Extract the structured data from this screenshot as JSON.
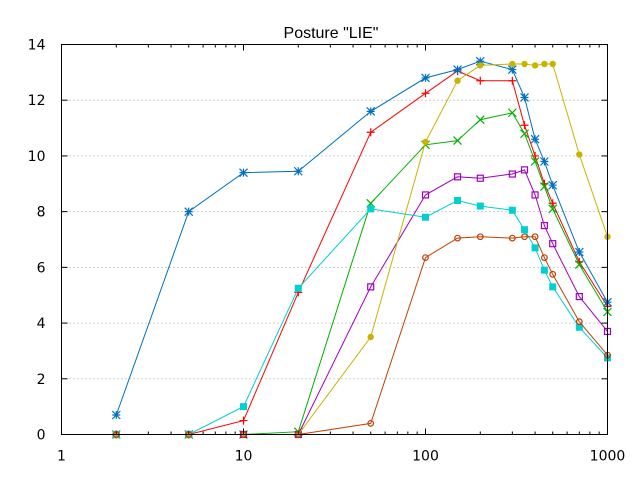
{
  "chart_data": {
    "type": "line",
    "title": "Posture \"LIE\"",
    "xlabel": "",
    "ylabel": "",
    "x_scale": "log",
    "xlim": [
      1,
      1000
    ],
    "ylim": [
      0,
      14
    ],
    "grid": "horizontal-dotted",
    "x_ticks": [
      1,
      10,
      100,
      1000
    ],
    "x_tick_labels": [
      "1",
      "10",
      "100",
      "1000"
    ],
    "y_ticks": [
      0,
      2,
      4,
      6,
      8,
      10,
      12,
      14
    ],
    "y_tick_labels": [
      "0",
      "2",
      "4",
      "6",
      "8",
      "10",
      "12",
      "14"
    ],
    "series": [
      {
        "color": "#ff0000",
        "marker": "plus",
        "points": [
          [
            2,
            0
          ],
          [
            5,
            0
          ],
          [
            10,
            0.5
          ],
          [
            20,
            5.1
          ],
          [
            50,
            10.85
          ],
          [
            100,
            12.25
          ],
          [
            150,
            13.05
          ],
          [
            200,
            12.7
          ],
          [
            300,
            12.7
          ],
          [
            350,
            11.1
          ],
          [
            400,
            10.0
          ],
          [
            450,
            9.0
          ],
          [
            500,
            8.3
          ],
          [
            700,
            6.2
          ],
          [
            1000,
            4.6
          ]
        ]
      },
      {
        "color": "#00b000",
        "marker": "x",
        "points": [
          [
            2,
            0
          ],
          [
            5,
            0
          ],
          [
            10,
            0
          ],
          [
            20,
            0.1
          ],
          [
            50,
            8.3
          ],
          [
            100,
            10.4
          ],
          [
            150,
            10.55
          ],
          [
            200,
            11.3
          ],
          [
            300,
            11.55
          ],
          [
            350,
            10.8
          ],
          [
            400,
            9.8
          ],
          [
            450,
            8.9
          ],
          [
            500,
            8.1
          ],
          [
            700,
            6.1
          ],
          [
            1000,
            4.4
          ]
        ]
      },
      {
        "color": "#0070c0",
        "marker": "star",
        "points": [
          [
            2,
            0.7
          ],
          [
            5,
            8.0
          ],
          [
            10,
            9.4
          ],
          [
            20,
            9.45
          ],
          [
            50,
            11.6
          ],
          [
            100,
            12.8
          ],
          [
            150,
            13.1
          ],
          [
            200,
            13.4
          ],
          [
            300,
            13.1
          ],
          [
            350,
            12.1
          ],
          [
            400,
            10.6
          ],
          [
            450,
            9.8
          ],
          [
            500,
            8.95
          ],
          [
            700,
            6.55
          ],
          [
            1000,
            4.75
          ]
        ]
      },
      {
        "color": "#a000c0",
        "marker": "open-square",
        "points": [
          [
            2,
            0
          ],
          [
            5,
            0
          ],
          [
            10,
            0
          ],
          [
            20,
            0
          ],
          [
            50,
            5.3
          ],
          [
            100,
            8.6
          ],
          [
            150,
            9.25
          ],
          [
            200,
            9.2
          ],
          [
            300,
            9.35
          ],
          [
            350,
            9.5
          ],
          [
            400,
            8.6
          ],
          [
            450,
            7.5
          ],
          [
            500,
            6.85
          ],
          [
            700,
            4.95
          ],
          [
            1000,
            3.7
          ]
        ]
      },
      {
        "color": "#00d0d0",
        "marker": "filled-square",
        "points": [
          [
            2,
            0
          ],
          [
            5,
            0
          ],
          [
            10,
            1.0
          ],
          [
            20,
            5.25
          ],
          [
            50,
            8.1
          ],
          [
            100,
            7.8
          ],
          [
            150,
            8.4
          ],
          [
            200,
            8.2
          ],
          [
            300,
            8.05
          ],
          [
            350,
            7.35
          ],
          [
            400,
            6.7
          ],
          [
            450,
            5.9
          ],
          [
            500,
            5.3
          ],
          [
            700,
            3.85
          ],
          [
            1000,
            2.75
          ]
        ]
      },
      {
        "color": "#c8b400",
        "marker": "filled-circle",
        "points": [
          [
            2,
            0
          ],
          [
            5,
            0
          ],
          [
            10,
            0
          ],
          [
            20,
            0
          ],
          [
            50,
            3.5
          ],
          [
            100,
            10.5
          ],
          [
            150,
            12.7
          ],
          [
            200,
            13.25
          ],
          [
            300,
            13.3
          ],
          [
            350,
            13.3
          ],
          [
            400,
            13.25
          ],
          [
            450,
            13.3
          ],
          [
            500,
            13.3
          ],
          [
            700,
            10.05
          ],
          [
            1000,
            7.1
          ]
        ]
      },
      {
        "color": "#c04000",
        "marker": "open-circle",
        "points": [
          [
            2,
            0
          ],
          [
            5,
            0
          ],
          [
            10,
            0
          ],
          [
            20,
            0
          ],
          [
            50,
            0.4
          ],
          [
            100,
            6.35
          ],
          [
            150,
            7.05
          ],
          [
            200,
            7.1
          ],
          [
            300,
            7.05
          ],
          [
            350,
            7.1
          ],
          [
            400,
            7.1
          ],
          [
            450,
            6.35
          ],
          [
            500,
            5.75
          ],
          [
            700,
            4.05
          ],
          [
            1000,
            2.85
          ]
        ]
      }
    ]
  }
}
